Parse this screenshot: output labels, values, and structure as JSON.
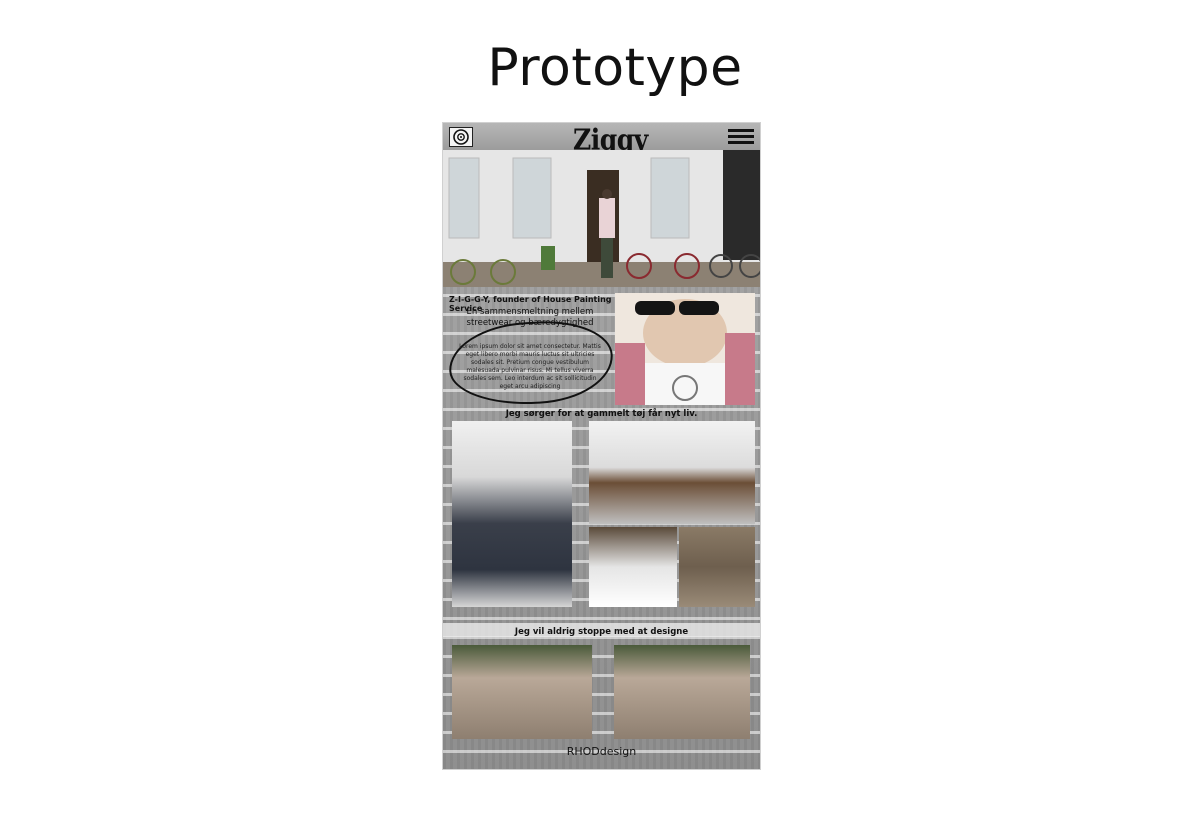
{
  "slide": {
    "title": "Prototype"
  },
  "app": {
    "brand": "Ziggy",
    "icons": {
      "logo": "target-logo-icon",
      "menu": "hamburger-menu-icon"
    }
  },
  "intro": {
    "founder": "Z-I-G-G-Y, founder of House Painting Service",
    "tagline": "En sammensmeltning mellem streetwear og bæredygtighed",
    "lorem": "Lorem ipsum dolor sit amet consectetur. Mattis eget libero morbi mauris luctus sit ultricies sodales sit. Pretium congue vestibulum malesuada pulvinar risus. Mi tellus viverra sodales sem. Leo interdum ac sit sollicitudin eget arcu adipiscing"
  },
  "section1": {
    "heading": "Jeg sørger for at gammelt tøj får nyt liv."
  },
  "section2": {
    "heading": "Jeg vil aldrig stoppe med at designe"
  },
  "footer": {
    "text": "RHODdesign"
  }
}
